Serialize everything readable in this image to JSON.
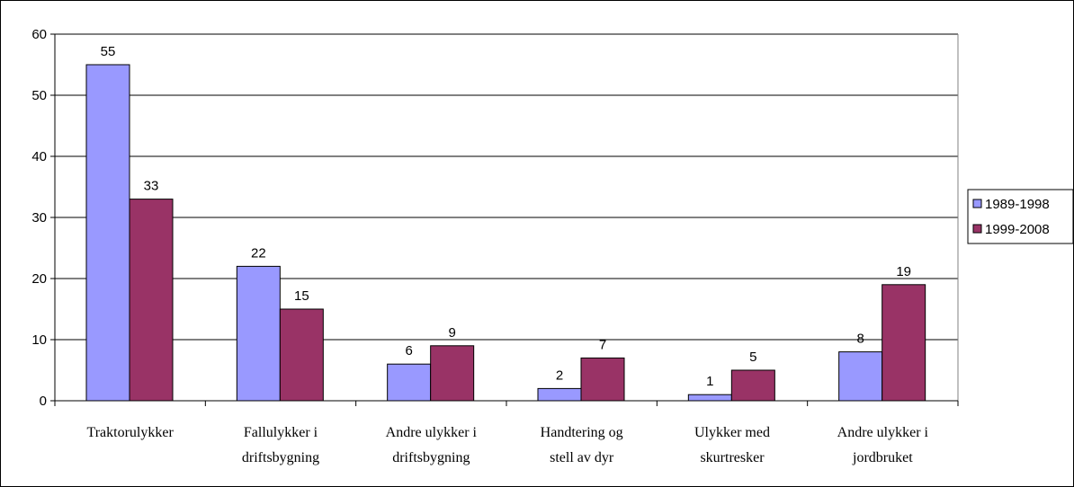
{
  "chart_data": {
    "type": "bar",
    "categories": [
      [
        "Traktorulykker"
      ],
      [
        "Fallulykker i",
        "driftsbygning"
      ],
      [
        "Andre ulykker i",
        "driftsbygning"
      ],
      [
        "Handtering og",
        "stell av dyr"
      ],
      [
        "Ulykker med",
        "skurtresker"
      ],
      [
        "Andre ulykker i",
        "jordbruket"
      ]
    ],
    "series": [
      {
        "name": "1989-1998",
        "color": "#9999ff",
        "values": [
          55,
          22,
          6,
          2,
          1,
          8
        ]
      },
      {
        "name": "1999-2008",
        "color": "#993366",
        "values": [
          33,
          15,
          9,
          7,
          5,
          19
        ]
      }
    ],
    "ylim": [
      0,
      60
    ],
    "yticks": [
      0,
      10,
      20,
      30,
      40,
      50,
      60
    ],
    "grid": true,
    "legend_position": "right",
    "data_labels": true
  }
}
